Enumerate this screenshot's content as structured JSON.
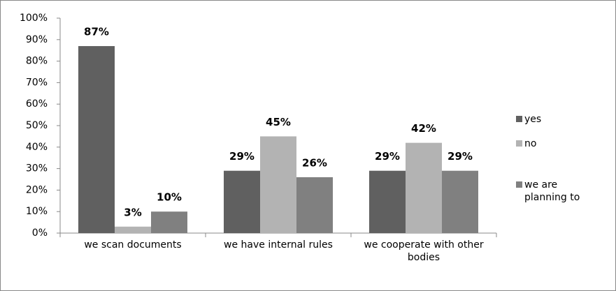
{
  "chart_data": {
    "type": "bar",
    "categories": [
      "we scan documents",
      "we have internal rules",
      "we cooperate with other bodies"
    ],
    "series": [
      {
        "name": "yes",
        "color": "#606060",
        "values": [
          87,
          29,
          29
        ],
        "value_labels": [
          "87%",
          "29%",
          "29%"
        ]
      },
      {
        "name": "no",
        "color": "#b3b3b3",
        "values": [
          3,
          45,
          42
        ],
        "value_labels": [
          "3%",
          "45%",
          "42%"
        ]
      },
      {
        "name": "we are planning to",
        "color": "#808080",
        "values": [
          10,
          26,
          29
        ],
        "value_labels": [
          "10%",
          "26%",
          "29%"
        ]
      }
    ],
    "ylim": [
      0,
      100
    ],
    "yticks": [
      {
        "value": 0,
        "label": "0%"
      },
      {
        "value": 10,
        "label": "10%"
      },
      {
        "value": 20,
        "label": "20%"
      },
      {
        "value": 30,
        "label": "30%"
      },
      {
        "value": 40,
        "label": "40%"
      },
      {
        "value": 50,
        "label": "50%"
      },
      {
        "value": 60,
        "label": "60%"
      },
      {
        "value": 70,
        "label": "70%"
      },
      {
        "value": 80,
        "label": "80%"
      },
      {
        "value": 90,
        "label": "90%"
      },
      {
        "value": 100,
        "label": "100%"
      }
    ],
    "legend": "right",
    "grid": false
  }
}
